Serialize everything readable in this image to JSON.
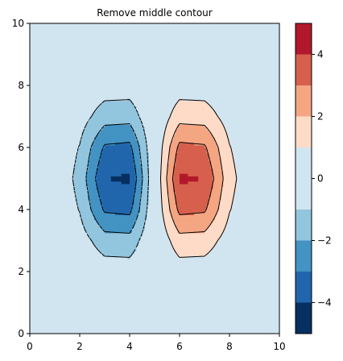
{
  "chart_data": {
    "type": "contour",
    "title": "Remove middle contour",
    "xlabel": "",
    "ylabel": "",
    "xlim": [
      0,
      10
    ],
    "ylim": [
      0,
      10
    ],
    "x_ticks": [
      0,
      2,
      4,
      6,
      8,
      10
    ],
    "y_ticks": [
      0,
      2,
      4,
      6,
      8,
      10
    ],
    "colormap": "RdBu_r",
    "levels": [
      -5,
      -4,
      -3,
      -2,
      -1,
      1,
      2,
      3,
      4,
      5
    ],
    "level_colors": [
      "#053061",
      "#2166ac",
      "#4393c3",
      "#92c5de",
      "#d1e5f0",
      "#fddbc7",
      "#f4a582",
      "#d6604d",
      "#b2182b",
      "#67001f"
    ],
    "contour_lines": {
      "negative_levels": [
        -3,
        -2,
        -1
      ],
      "positive_levels": [
        1,
        2,
        3
      ],
      "negative_style": "dashed",
      "positive_style": "solid",
      "color": "#000000",
      "removed_level": 0
    },
    "series": [
      {
        "peak": [
          3.6,
          5.0
        ],
        "amplitude": -4.8
      },
      {
        "peak": [
          6.4,
          5.0
        ],
        "amplitude": 4.8
      }
    ],
    "colorbar": {
      "ticks": [
        -4,
        -2,
        0,
        2,
        4
      ],
      "tick_labels": [
        "−4",
        "−2",
        "0",
        "2",
        "4"
      ],
      "range": [
        -5,
        5
      ]
    }
  }
}
